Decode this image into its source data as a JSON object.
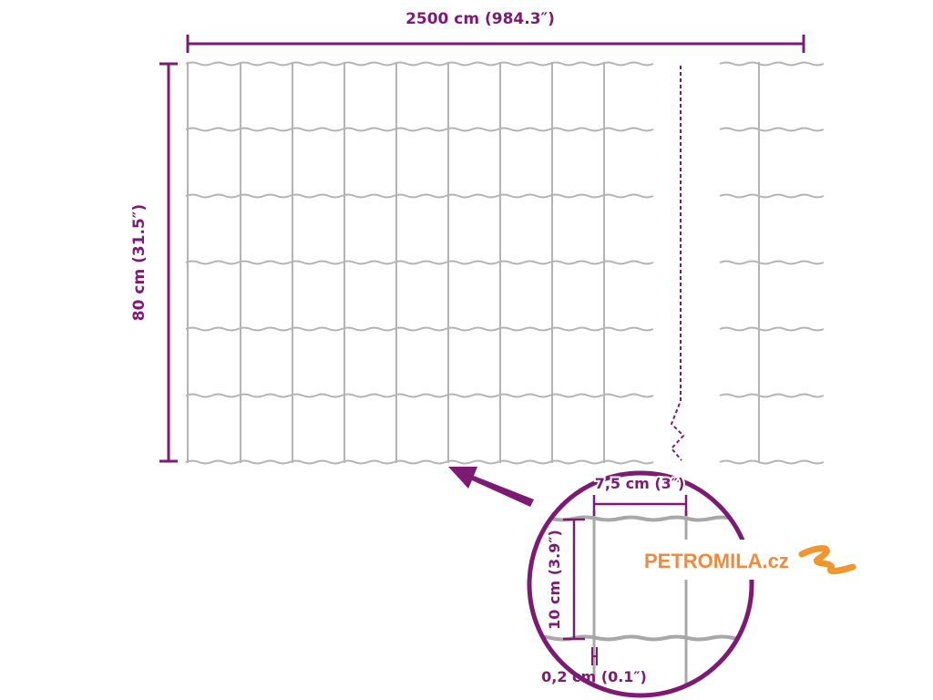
{
  "dimensions": {
    "width_label": "2500 cm (984.3″)",
    "height_label": "80 cm (31.5″)",
    "mesh_width_label": "7,5 cm (3″)",
    "mesh_height_label": "10 cm (3.9″)",
    "wire_thickness_label": "0,2 cm (0.1″)"
  },
  "logo": {
    "text": "PETROMILA.cz"
  },
  "colors": {
    "accent": "#7d1a74",
    "wire": "#b4b4b4",
    "logo": "#f08a3c"
  }
}
